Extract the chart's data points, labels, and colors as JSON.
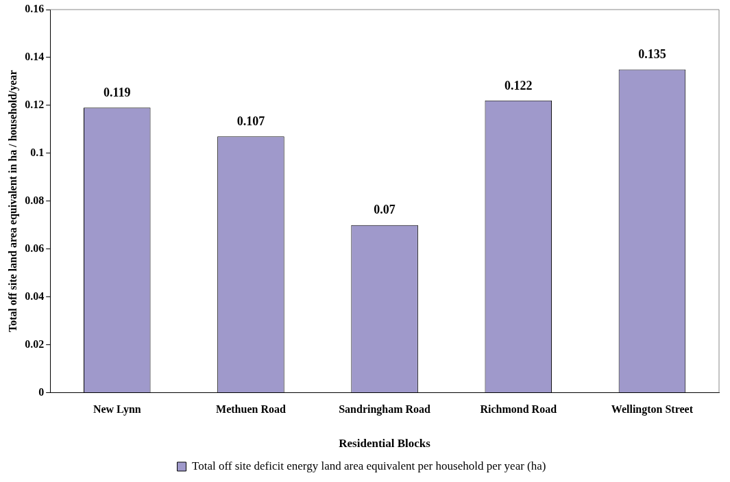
{
  "chart_data": {
    "type": "bar",
    "xlabel": "Residential Blocks",
    "ylabel": "Total off site land area equivalent in ha / household/year",
    "categories": [
      "New Lynn",
      "Methuen Road",
      "Sandringham Road",
      "Richmond Road",
      "Wellington Street"
    ],
    "series": [
      {
        "name": "Total off site deficit energy land area equivalent per household per year (ha)",
        "color": "#9f99cb",
        "values": [
          0.119,
          0.107,
          0.07,
          0.122,
          0.135
        ]
      }
    ],
    "ylim": [
      0,
      0.16
    ],
    "yticks": [
      0,
      0.02,
      0.04,
      0.06,
      0.08,
      0.1,
      0.12,
      0.14,
      0.16
    ],
    "grid": false,
    "legend": "bottom",
    "data_labels": true
  }
}
